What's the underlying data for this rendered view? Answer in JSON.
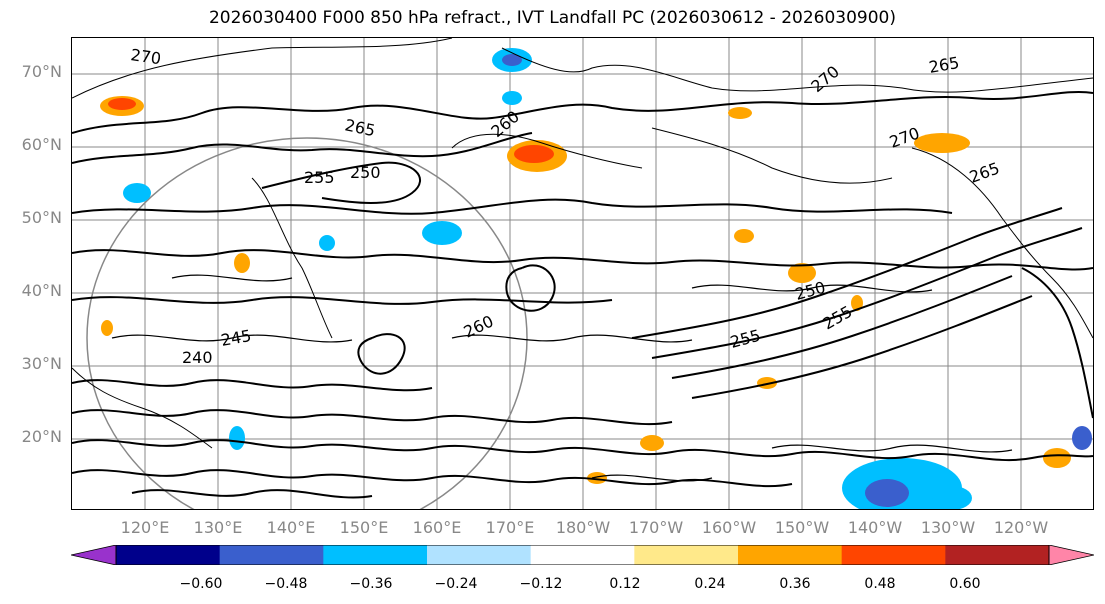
{
  "title": "2026030400 F000 850 hPa refract., IVT Landfall PC (2026030612 - 2026030900)",
  "lat_labels": [
    "70°N",
    "60°N",
    "50°N",
    "40°N",
    "30°N",
    "20°N"
  ],
  "lon_labels": [
    "120°E",
    "130°E",
    "140°E",
    "150°E",
    "160°E",
    "170°E",
    "180°W",
    "170°W",
    "160°W",
    "150°W",
    "140°W",
    "130°W",
    "120°W"
  ],
  "colorbar": {
    "colors": [
      "#9932cc",
      "#00008b",
      "#3a5fcd",
      "#00bfff",
      "#b0e2ff",
      "#ffffff",
      "#ffe98a",
      "#ffa500",
      "#ff4500",
      "#b22222",
      "#ff85a8"
    ],
    "ticks": [
      "−0.60",
      "−0.48",
      "−0.36",
      "−0.24",
      "−0.12",
      "0.12",
      "0.24",
      "0.36",
      "0.48",
      "0.60"
    ]
  },
  "contour_labels": [
    "270",
    "265",
    "250",
    "255",
    "260",
    "265",
    "270",
    "265",
    "255",
    "250",
    "240",
    "245",
    "260",
    "255",
    "270"
  ]
}
